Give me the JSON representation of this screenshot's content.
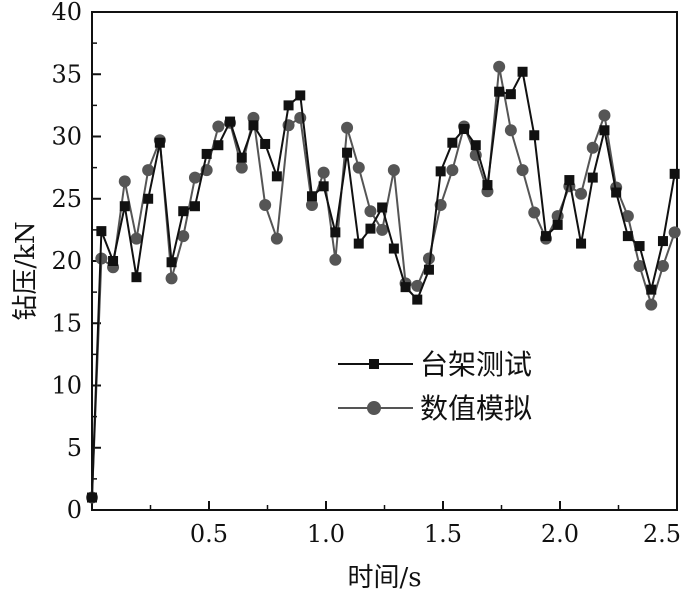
{
  "chart_data": {
    "type": "line",
    "title": "",
    "xlabel": "时间/s",
    "ylabel": "钻压/kN",
    "xlim": [
      0,
      2.5
    ],
    "ylim": [
      0,
      40
    ],
    "x_ticks": [
      0.5,
      1.0,
      1.5,
      2.0,
      2.5
    ],
    "x_tick_labels": [
      "0.5",
      "1.0",
      "1.5",
      "2.0",
      "2.5"
    ],
    "y_ticks": [
      0,
      5,
      10,
      15,
      20,
      25,
      30,
      35,
      40
    ],
    "y_tick_labels": [
      "0",
      "5",
      "10",
      "15",
      "20",
      "25",
      "30",
      "35",
      "40"
    ],
    "grid": false,
    "legend_position": "center-right",
    "series": [
      {
        "name": "台架测试",
        "marker": "square",
        "color": "#111111",
        "points": [
          [
            0.0,
            1.0
          ],
          [
            0.04,
            22.4
          ],
          [
            0.09,
            20.0
          ],
          [
            0.14,
            24.4
          ],
          [
            0.19,
            18.7
          ],
          [
            0.24,
            25.0
          ],
          [
            0.29,
            29.5
          ],
          [
            0.34,
            19.9
          ],
          [
            0.39,
            24.0
          ],
          [
            0.44,
            24.4
          ],
          [
            0.49,
            28.6
          ],
          [
            0.54,
            29.3
          ],
          [
            0.59,
            31.2
          ],
          [
            0.64,
            28.3
          ],
          [
            0.69,
            30.9
          ],
          [
            0.74,
            29.4
          ],
          [
            0.79,
            26.8
          ],
          [
            0.84,
            32.5
          ],
          [
            0.89,
            33.3
          ],
          [
            0.94,
            25.2
          ],
          [
            0.99,
            26.0
          ],
          [
            1.04,
            22.3
          ],
          [
            1.09,
            28.7
          ],
          [
            1.14,
            21.4
          ],
          [
            1.19,
            22.6
          ],
          [
            1.24,
            24.3
          ],
          [
            1.29,
            21.0
          ],
          [
            1.34,
            17.9
          ],
          [
            1.39,
            16.9
          ],
          [
            1.44,
            19.3
          ],
          [
            1.49,
            27.2
          ],
          [
            1.54,
            29.5
          ],
          [
            1.59,
            30.6
          ],
          [
            1.64,
            29.3
          ],
          [
            1.69,
            26.1
          ],
          [
            1.74,
            33.6
          ],
          [
            1.79,
            33.4
          ],
          [
            1.84,
            35.2
          ],
          [
            1.89,
            30.1
          ],
          [
            1.94,
            22.0
          ],
          [
            1.99,
            22.9
          ],
          [
            2.04,
            26.5
          ],
          [
            2.09,
            21.4
          ],
          [
            2.14,
            26.7
          ],
          [
            2.19,
            30.5
          ],
          [
            2.24,
            25.5
          ],
          [
            2.29,
            22.0
          ],
          [
            2.34,
            21.2
          ],
          [
            2.39,
            17.7
          ],
          [
            2.44,
            21.6
          ],
          [
            2.49,
            27.0
          ]
        ]
      },
      {
        "name": "数值模拟",
        "marker": "circle",
        "color": "#555555",
        "points": [
          [
            0.0,
            1.0
          ],
          [
            0.04,
            20.2
          ],
          [
            0.09,
            19.5
          ],
          [
            0.14,
            26.4
          ],
          [
            0.19,
            21.8
          ],
          [
            0.24,
            27.3
          ],
          [
            0.29,
            29.7
          ],
          [
            0.34,
            18.6
          ],
          [
            0.39,
            22.0
          ],
          [
            0.44,
            26.7
          ],
          [
            0.49,
            27.3
          ],
          [
            0.54,
            30.8
          ],
          [
            0.59,
            31.1
          ],
          [
            0.64,
            27.5
          ],
          [
            0.69,
            31.5
          ],
          [
            0.74,
            24.5
          ],
          [
            0.79,
            21.8
          ],
          [
            0.84,
            30.9
          ],
          [
            0.89,
            31.5
          ],
          [
            0.94,
            24.5
          ],
          [
            0.99,
            27.1
          ],
          [
            1.04,
            20.1
          ],
          [
            1.09,
            30.7
          ],
          [
            1.14,
            27.5
          ],
          [
            1.19,
            24.0
          ],
          [
            1.24,
            22.5
          ],
          [
            1.29,
            27.3
          ],
          [
            1.34,
            18.2
          ],
          [
            1.39,
            18.0
          ],
          [
            1.44,
            20.2
          ],
          [
            1.49,
            24.5
          ],
          [
            1.54,
            27.3
          ],
          [
            1.59,
            30.8
          ],
          [
            1.64,
            28.5
          ],
          [
            1.69,
            25.6
          ],
          [
            1.74,
            35.6
          ],
          [
            1.79,
            30.5
          ],
          [
            1.84,
            27.3
          ],
          [
            1.89,
            23.9
          ],
          [
            1.94,
            21.8
          ],
          [
            1.99,
            23.6
          ],
          [
            2.04,
            26.0
          ],
          [
            2.09,
            25.4
          ],
          [
            2.14,
            29.1
          ],
          [
            2.19,
            31.7
          ],
          [
            2.24,
            25.9
          ],
          [
            2.29,
            23.6
          ],
          [
            2.34,
            19.6
          ],
          [
            2.39,
            16.5
          ],
          [
            2.44,
            19.6
          ],
          [
            2.49,
            22.3
          ]
        ]
      }
    ]
  }
}
